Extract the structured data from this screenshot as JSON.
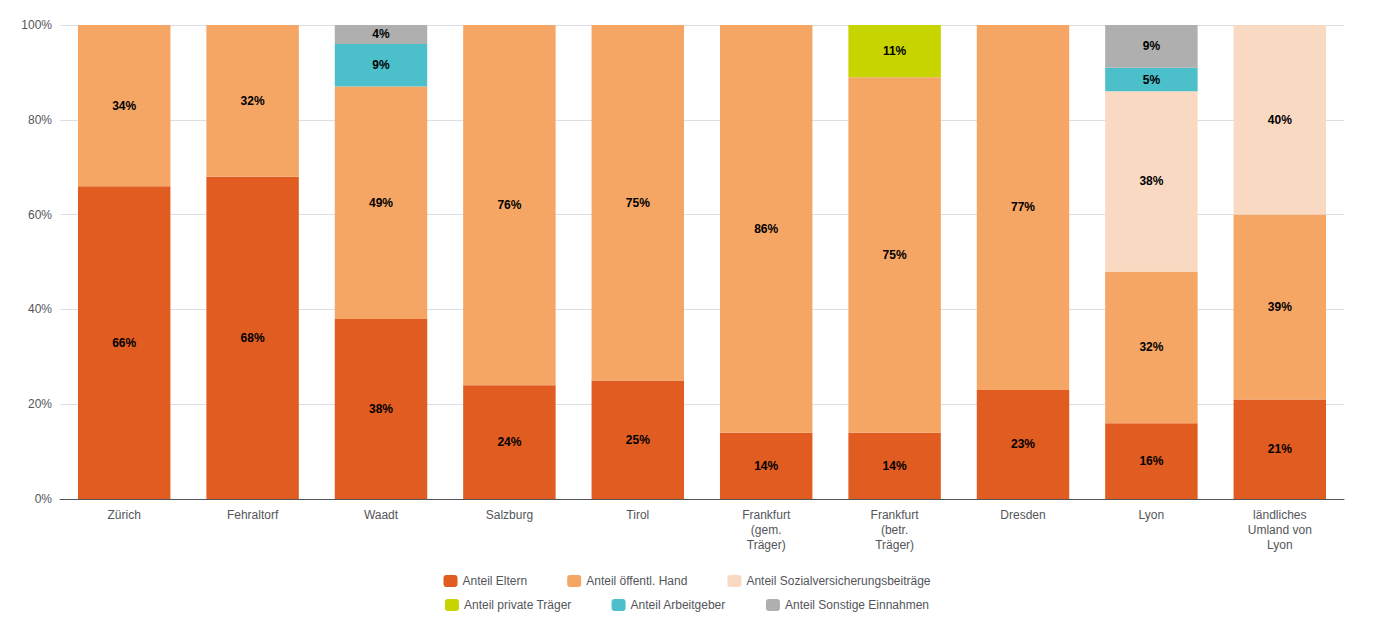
{
  "chart_data": {
    "type": "bar",
    "stacked": true,
    "data_labels": true,
    "grid": true,
    "legend": "bottom",
    "categories": [
      "Zürich",
      "Fehraltorf",
      "Waadt",
      "Salzburg",
      "Tirol",
      "Frankfurt\n(gem.\nTräger)",
      "Frankfurt\n(betr.\nTräger)",
      "Dresden",
      "Lyon",
      "ländliches\nUmland von\nLyon"
    ],
    "series": [
      {
        "name": "Anteil Eltern",
        "color": "#E05C20",
        "values": [
          66,
          68,
          38,
          24,
          25,
          14,
          14,
          23,
          16,
          21
        ],
        "value_labels": [
          "66%",
          "68%",
          "38%",
          "24%",
          "25%",
          "14%",
          "14%",
          "23%",
          "16%",
          "21%"
        ]
      },
      {
        "name": "Anteil öffentl. Hand",
        "color": "#F5A564",
        "values": [
          34,
          32,
          49,
          76,
          75,
          86,
          75,
          77,
          32,
          39
        ],
        "value_labels": [
          "34%",
          "32%",
          "49%",
          "76%",
          "75%",
          "86%",
          "75%",
          "77%",
          "32%",
          "39%"
        ]
      },
      {
        "name": "Anteil Sozialversicherungsbeiträge",
        "color": "#FAD9C3",
        "values": [
          0,
          0,
          0,
          0,
          0,
          0,
          0,
          0,
          38,
          40
        ],
        "value_labels": [
          null,
          null,
          null,
          null,
          null,
          null,
          null,
          null,
          "38%",
          "40%"
        ]
      },
      {
        "name": "Anteil private Träger",
        "color": "#C8D400",
        "values": [
          0,
          0,
          0,
          0,
          0,
          0,
          11,
          0,
          0,
          0
        ],
        "value_labels": [
          null,
          null,
          null,
          null,
          null,
          null,
          "11%",
          null,
          null,
          null
        ]
      },
      {
        "name": "Anteil Arbeitgeber",
        "color": "#4BBFCA",
        "values": [
          0,
          0,
          9,
          0,
          0,
          0,
          0,
          0,
          5,
          0
        ],
        "value_labels": [
          null,
          null,
          "9%",
          null,
          null,
          null,
          null,
          null,
          "5%",
          null
        ]
      },
      {
        "name": "Anteil Sonstige Einnahmen",
        "color": "#AFAFAF",
        "values": [
          0,
          0,
          4,
          0,
          0,
          0,
          0,
          0,
          9,
          0
        ],
        "value_labels": [
          null,
          null,
          "4%",
          null,
          null,
          null,
          null,
          null,
          "9%",
          null
        ]
      }
    ],
    "ylim": [
      0,
      100
    ],
    "yticks": [
      {
        "value": 0,
        "label": "0%"
      },
      {
        "value": 20,
        "label": "20%"
      },
      {
        "value": 40,
        "label": "40%"
      },
      {
        "value": 60,
        "label": "60%"
      },
      {
        "value": 80,
        "label": "80%"
      },
      {
        "value": 100,
        "label": "100%"
      }
    ]
  }
}
